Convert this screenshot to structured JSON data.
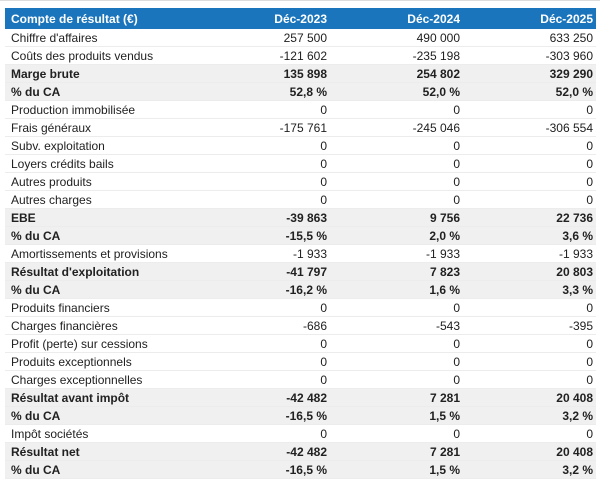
{
  "page": {
    "background": "#ffffff",
    "top_rule_color": "#dcdcdc"
  },
  "chart_data": {
    "type": "table",
    "title": "Compte de résultat (€)",
    "columns": [
      "Compte de résultat (€)",
      "Déc-2023",
      "Déc-2024",
      "Déc-2025"
    ],
    "rows": [
      {
        "label": "Chiffre d'affaires",
        "values": [
          "257 500",
          "490 000",
          "633 250"
        ],
        "emphasis": false
      },
      {
        "label": "Coûts des produits vendus",
        "values": [
          "-121 602",
          "-235 198",
          "-303 960"
        ],
        "emphasis": false
      },
      {
        "label": "Marge brute",
        "values": [
          "135 898",
          "254 802",
          "329 290"
        ],
        "emphasis": true
      },
      {
        "label": "% du CA",
        "values": [
          "52,8 %",
          "52,0 %",
          "52,0 %"
        ],
        "emphasis": true
      },
      {
        "label": "Production immobilisée",
        "values": [
          "0",
          "0",
          "0"
        ],
        "emphasis": false
      },
      {
        "label": "Frais généraux",
        "values": [
          "-175 761",
          "-245 046",
          "-306 554"
        ],
        "emphasis": false
      },
      {
        "label": "Subv. exploitation",
        "values": [
          "0",
          "0",
          "0"
        ],
        "emphasis": false
      },
      {
        "label": "Loyers crédits bails",
        "values": [
          "0",
          "0",
          "0"
        ],
        "emphasis": false
      },
      {
        "label": "Autres produits",
        "values": [
          "0",
          "0",
          "0"
        ],
        "emphasis": false
      },
      {
        "label": "Autres charges",
        "values": [
          "0",
          "0",
          "0"
        ],
        "emphasis": false
      },
      {
        "label": "EBE",
        "values": [
          "-39 863",
          "9 756",
          "22 736"
        ],
        "emphasis": true
      },
      {
        "label": "% du CA",
        "values": [
          "-15,5 %",
          "2,0 %",
          "3,6 %"
        ],
        "emphasis": true
      },
      {
        "label": "Amortissements et provisions",
        "values": [
          "-1 933",
          "-1 933",
          "-1 933"
        ],
        "emphasis": false
      },
      {
        "label": "Résultat d'exploitation",
        "values": [
          "-41 797",
          "7 823",
          "20 803"
        ],
        "emphasis": true
      },
      {
        "label": "% du CA",
        "values": [
          "-16,2 %",
          "1,6 %",
          "3,3 %"
        ],
        "emphasis": true
      },
      {
        "label": "Produits financiers",
        "values": [
          "0",
          "0",
          "0"
        ],
        "emphasis": false
      },
      {
        "label": "Charges financières",
        "values": [
          "-686",
          "-543",
          "-395"
        ],
        "emphasis": false
      },
      {
        "label": "Profit (perte) sur cessions",
        "values": [
          "0",
          "0",
          "0"
        ],
        "emphasis": false
      },
      {
        "label": "Produits exceptionnels",
        "values": [
          "0",
          "0",
          "0"
        ],
        "emphasis": false
      },
      {
        "label": "Charges exceptionnelles",
        "values": [
          "0",
          "0",
          "0"
        ],
        "emphasis": false
      },
      {
        "label": "Résultat avant impôt",
        "values": [
          "-42 482",
          "7 281",
          "20 408"
        ],
        "emphasis": true
      },
      {
        "label": "% du CA",
        "values": [
          "-16,5 %",
          "1,5 %",
          "3,2 %"
        ],
        "emphasis": true
      },
      {
        "label": "Impôt sociétés",
        "values": [
          "0",
          "0",
          "0"
        ],
        "emphasis": false
      },
      {
        "label": "Résultat net",
        "values": [
          "-42 482",
          "7 281",
          "20 408"
        ],
        "emphasis": true
      },
      {
        "label": "% du CA",
        "values": [
          "-16,5 %",
          "1,5 %",
          "3,2 %"
        ],
        "emphasis": true
      }
    ],
    "styles": {
      "header_bg": "#1b75bc",
      "header_text": "#ffffff",
      "shaded_row_bg": "#f0f0f0",
      "row_border": "#ececec",
      "text_color": "#212121"
    },
    "layout": {
      "legend": "none",
      "grid": "horizontal-row-separators"
    }
  }
}
